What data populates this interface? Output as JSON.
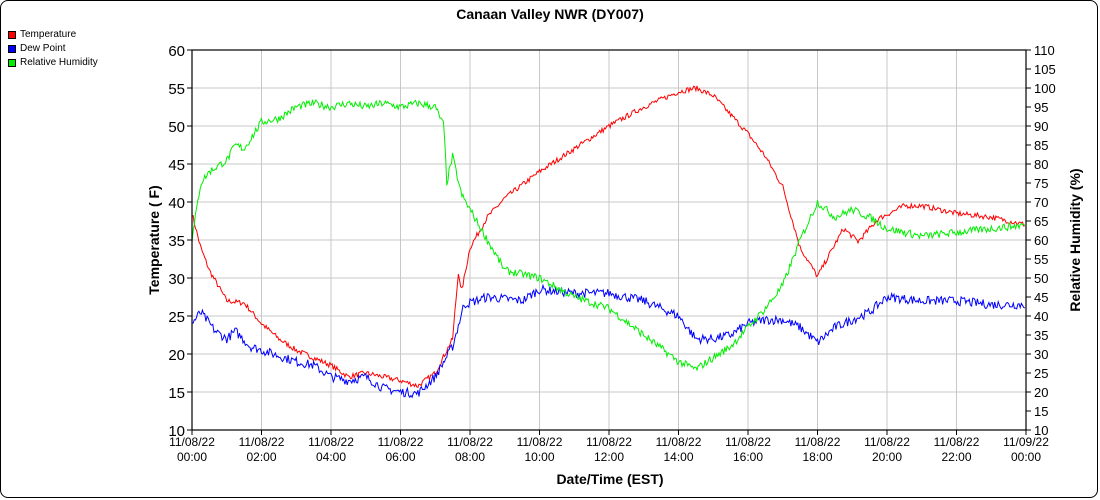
{
  "chart_data": {
    "type": "line",
    "title": "Canaan Valley NWR (DY007)",
    "xlabel": "Date/Time (EST)",
    "ylabel": "Temperature ( F)",
    "y2label": "Relative Humidity (%)",
    "ylim": [
      10,
      60
    ],
    "y2lim": [
      10,
      110
    ],
    "yticks": [
      "10",
      "15",
      "20",
      "25",
      "30",
      "35",
      "40",
      "45",
      "50",
      "55",
      "60"
    ],
    "y2ticks": [
      "10",
      "15",
      "20",
      "25",
      "30",
      "35",
      "40",
      "45",
      "50",
      "55",
      "60",
      "65",
      "70",
      "75",
      "80",
      "85",
      "90",
      "95",
      "100",
      "105",
      "110"
    ],
    "xlim_hours": [
      0,
      24
    ],
    "xticks": [
      {
        "date": "11/08/22",
        "time": "00:00"
      },
      {
        "date": "11/08/22",
        "time": "02:00"
      },
      {
        "date": "11/08/22",
        "time": "04:00"
      },
      {
        "date": "11/08/22",
        "time": "06:00"
      },
      {
        "date": "11/08/22",
        "time": "08:00"
      },
      {
        "date": "11/08/22",
        "time": "10:00"
      },
      {
        "date": "11/08/22",
        "time": "12:00"
      },
      {
        "date": "11/08/22",
        "time": "14:00"
      },
      {
        "date": "11/08/22",
        "time": "16:00"
      },
      {
        "date": "11/08/22",
        "time": "18:00"
      },
      {
        "date": "11/08/22",
        "time": "20:00"
      },
      {
        "date": "11/08/22",
        "time": "22:00"
      },
      {
        "date": "11/09/22",
        "time": "00:00"
      }
    ],
    "grid": true,
    "legend_position": "top-left",
    "series": [
      {
        "name": "Temperature",
        "color": "#ff0000",
        "axis": "left",
        "noise": 0.35,
        "points": [
          [
            0,
            38.5
          ],
          [
            0.25,
            34
          ],
          [
            0.5,
            31
          ],
          [
            1,
            27
          ],
          [
            1.5,
            26.7
          ],
          [
            2,
            24
          ],
          [
            2.5,
            22
          ],
          [
            3,
            20.5
          ],
          [
            3.5,
            19.5
          ],
          [
            4,
            18.5
          ],
          [
            4.5,
            17
          ],
          [
            5,
            17.5
          ],
          [
            5.5,
            17
          ],
          [
            6,
            16.5
          ],
          [
            6.5,
            15.8
          ],
          [
            7,
            17.5
          ],
          [
            7.5,
            22
          ],
          [
            7.67,
            31
          ],
          [
            7.75,
            28
          ],
          [
            8,
            34
          ],
          [
            8.5,
            38
          ],
          [
            9,
            40.5
          ],
          [
            10,
            44
          ],
          [
            11,
            47
          ],
          [
            12,
            50
          ],
          [
            13,
            52.5
          ],
          [
            14,
            54.5
          ],
          [
            14.5,
            55
          ],
          [
            15,
            54
          ],
          [
            16,
            49
          ],
          [
            16.5,
            46
          ],
          [
            17,
            42
          ],
          [
            17.5,
            34
          ],
          [
            18,
            30.2
          ],
          [
            18.33,
            33
          ],
          [
            18.75,
            36.5
          ],
          [
            19.17,
            34.8
          ],
          [
            19.75,
            37.8
          ],
          [
            20.5,
            39.5
          ],
          [
            21,
            39.5
          ],
          [
            22,
            38.5
          ],
          [
            23,
            38
          ],
          [
            24,
            37
          ]
        ]
      },
      {
        "name": "Dew Point",
        "color": "#0000ff",
        "axis": "left",
        "noise": 0.6,
        "points": [
          [
            0,
            24
          ],
          [
            0.25,
            25.5
          ],
          [
            0.67,
            23
          ],
          [
            1,
            22
          ],
          [
            1.25,
            23
          ],
          [
            1.67,
            21
          ],
          [
            2,
            20.5
          ],
          [
            3,
            19
          ],
          [
            3.5,
            18.5
          ],
          [
            4,
            17
          ],
          [
            4.5,
            16.5
          ],
          [
            5,
            17
          ],
          [
            5.5,
            15.5
          ],
          [
            6,
            15
          ],
          [
            6.5,
            14.8
          ],
          [
            7,
            17
          ],
          [
            7.5,
            21
          ],
          [
            7.83,
            26.5
          ],
          [
            8.5,
            27.5
          ],
          [
            9.5,
            27
          ],
          [
            10,
            28.5
          ],
          [
            11,
            28
          ],
          [
            12,
            28
          ],
          [
            13,
            27
          ],
          [
            14,
            25
          ],
          [
            14.5,
            22
          ],
          [
            15,
            22
          ],
          [
            15.5,
            22.5
          ],
          [
            16,
            24
          ],
          [
            16.5,
            24.5
          ],
          [
            17,
            24.5
          ],
          [
            17.5,
            23.5
          ],
          [
            18,
            21.5
          ],
          [
            18.5,
            23.5
          ],
          [
            19,
            24.5
          ],
          [
            19.5,
            25.5
          ],
          [
            20,
            27.5
          ],
          [
            21,
            27
          ],
          [
            22,
            27
          ],
          [
            23,
            26.5
          ],
          [
            24,
            26.5
          ]
        ]
      },
      {
        "name": "Relative Humidity",
        "color": "#00ee00",
        "axis": "right",
        "noise": 1.0,
        "points": [
          [
            0,
            60
          ],
          [
            0.25,
            75
          ],
          [
            0.5,
            78
          ],
          [
            1,
            81
          ],
          [
            1.25,
            85
          ],
          [
            1.5,
            84
          ],
          [
            2,
            91
          ],
          [
            2.5,
            92
          ],
          [
            3,
            95
          ],
          [
            3.5,
            96
          ],
          [
            4,
            95
          ],
          [
            4.5,
            96
          ],
          [
            5,
            95
          ],
          [
            5.5,
            96
          ],
          [
            6,
            95
          ],
          [
            6.5,
            96
          ],
          [
            7,
            95
          ],
          [
            7.25,
            90
          ],
          [
            7.33,
            75
          ],
          [
            7.5,
            82
          ],
          [
            7.75,
            72
          ],
          [
            8,
            68
          ],
          [
            8.5,
            60
          ],
          [
            9,
            52
          ],
          [
            10,
            50
          ],
          [
            11,
            45
          ],
          [
            12,
            42
          ],
          [
            13,
            35
          ],
          [
            14,
            28
          ],
          [
            14.5,
            26
          ],
          [
            15,
            29
          ],
          [
            15.5,
            32
          ],
          [
            16,
            37
          ],
          [
            16.5,
            42
          ],
          [
            17,
            48
          ],
          [
            17.5,
            60
          ],
          [
            18,
            70
          ],
          [
            18.5,
            66
          ],
          [
            19,
            68
          ],
          [
            19.5,
            66
          ],
          [
            20,
            63
          ],
          [
            21,
            61
          ],
          [
            22,
            62
          ],
          [
            23,
            63
          ],
          [
            24,
            64
          ]
        ]
      }
    ]
  }
}
